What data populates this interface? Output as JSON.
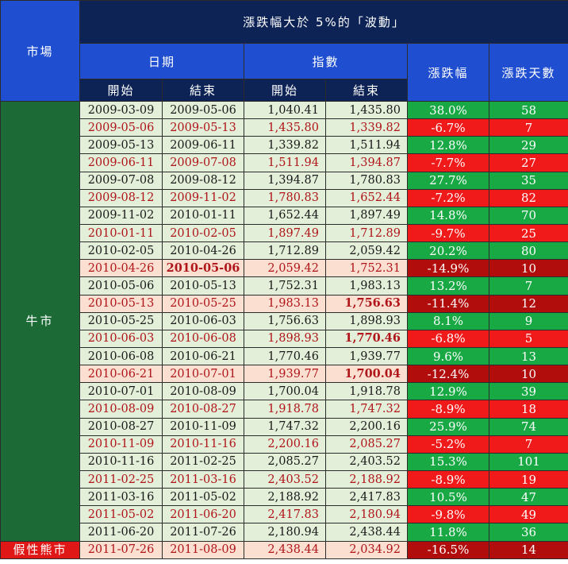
{
  "header": {
    "market": "市場",
    "title": "漲跌幅大於 5%的「波動」",
    "date_group": "日期",
    "index_group": "指數",
    "pct": "漲跌幅",
    "days": "漲跌天數",
    "start": "開始",
    "end": "結束"
  },
  "market_labels": {
    "bull": "牛市",
    "pseudo_bear": "假性熊市"
  },
  "colors": {
    "up": "#18a945",
    "down": "#f01a1a",
    "large_down": "#b20d0d",
    "highlight_row": "#fbe0d2",
    "row_bg": "#e3efd9"
  },
  "rows": [
    {
      "start_date": "2009-03-09",
      "end_date": "2009-05-06",
      "start_idx": "1,040.41",
      "end_idx": "1,435.80",
      "pct": "38.0%",
      "days": "58",
      "kind": "up"
    },
    {
      "start_date": "2009-05-06",
      "end_date": "2009-05-13",
      "start_idx": "1,435.80",
      "end_idx": "1,339.82",
      "pct": "-6.7%",
      "days": "7",
      "kind": "down"
    },
    {
      "start_date": "2009-05-13",
      "end_date": "2009-06-11",
      "start_idx": "1,339.82",
      "end_idx": "1,511.94",
      "pct": "12.8%",
      "days": "29",
      "kind": "up"
    },
    {
      "start_date": "2009-06-11",
      "end_date": "2009-07-08",
      "start_idx": "1,511.94",
      "end_idx": "1,394.87",
      "pct": "-7.7%",
      "days": "27",
      "kind": "down"
    },
    {
      "start_date": "2009-07-08",
      "end_date": "2009-08-12",
      "start_idx": "1,394.87",
      "end_idx": "1,780.83",
      "pct": "27.7%",
      "days": "35",
      "kind": "up"
    },
    {
      "start_date": "2009-08-12",
      "end_date": "2009-11-02",
      "start_idx": "1,780.83",
      "end_idx": "1,652.44",
      "pct": "-7.2%",
      "days": "82",
      "kind": "down"
    },
    {
      "start_date": "2009-11-02",
      "end_date": "2010-01-11",
      "start_idx": "1,652.44",
      "end_idx": "1,897.49",
      "pct": "14.8%",
      "days": "70",
      "kind": "up"
    },
    {
      "start_date": "2010-01-11",
      "end_date": "2010-02-05",
      "start_idx": "1,897.49",
      "end_idx": "1,712.89",
      "pct": "-9.7%",
      "days": "25",
      "kind": "down"
    },
    {
      "start_date": "2010-02-05",
      "end_date": "2010-04-26",
      "start_idx": "1,712.89",
      "end_idx": "2,059.42",
      "pct": "20.2%",
      "days": "80",
      "kind": "up"
    },
    {
      "start_date": "2010-04-26",
      "end_date": "2010-05-06",
      "start_idx": "2,059.42",
      "end_idx": "1,752.31",
      "pct": "-14.9%",
      "days": "10",
      "kind": "hl",
      "bold": "end_date"
    },
    {
      "start_date": "2010-05-06",
      "end_date": "2010-05-13",
      "start_idx": "1,752.31",
      "end_idx": "1,983.13",
      "pct": "13.2%",
      "days": "7",
      "kind": "up"
    },
    {
      "start_date": "2010-05-13",
      "end_date": "2010-05-25",
      "start_idx": "1,983.13",
      "end_idx": "1,756.63",
      "pct": "-11.4%",
      "days": "12",
      "kind": "hl",
      "bold": "end_idx"
    },
    {
      "start_date": "2010-05-25",
      "end_date": "2010-06-03",
      "start_idx": "1,756.63",
      "end_idx": "1,898.93",
      "pct": "8.1%",
      "days": "9",
      "kind": "up"
    },
    {
      "start_date": "2010-06-03",
      "end_date": "2010-06-08",
      "start_idx": "1,898.93",
      "end_idx": "1,770.46",
      "pct": "-6.8%",
      "days": "5",
      "kind": "down",
      "bold": "end_idx"
    },
    {
      "start_date": "2010-06-08",
      "end_date": "2010-06-21",
      "start_idx": "1,770.46",
      "end_idx": "1,939.77",
      "pct": "9.6%",
      "days": "13",
      "kind": "up"
    },
    {
      "start_date": "2010-06-21",
      "end_date": "2010-07-01",
      "start_idx": "1,939.77",
      "end_idx": "1,700.04",
      "pct": "-12.4%",
      "days": "10",
      "kind": "hl",
      "bold": "end_idx"
    },
    {
      "start_date": "2010-07-01",
      "end_date": "2010-08-09",
      "start_idx": "1,700.04",
      "end_idx": "1,918.78",
      "pct": "12.9%",
      "days": "39",
      "kind": "up"
    },
    {
      "start_date": "2010-08-09",
      "end_date": "2010-08-27",
      "start_idx": "1,918.78",
      "end_idx": "1,747.32",
      "pct": "-8.9%",
      "days": "18",
      "kind": "down"
    },
    {
      "start_date": "2010-08-27",
      "end_date": "2010-11-09",
      "start_idx": "1,747.32",
      "end_idx": "2,200.16",
      "pct": "25.9%",
      "days": "74",
      "kind": "up"
    },
    {
      "start_date": "2010-11-09",
      "end_date": "2010-11-16",
      "start_idx": "2,200.16",
      "end_idx": "2,085.27",
      "pct": "-5.2%",
      "days": "7",
      "kind": "down"
    },
    {
      "start_date": "2010-11-16",
      "end_date": "2011-02-25",
      "start_idx": "2,085.27",
      "end_idx": "2,403.52",
      "pct": "15.3%",
      "days": "101",
      "kind": "up"
    },
    {
      "start_date": "2011-02-25",
      "end_date": "2011-03-16",
      "start_idx": "2,403.52",
      "end_idx": "2,188.92",
      "pct": "-8.9%",
      "days": "19",
      "kind": "down"
    },
    {
      "start_date": "2011-03-16",
      "end_date": "2011-05-02",
      "start_idx": "2,188.92",
      "end_idx": "2,417.83",
      "pct": "10.5%",
      "days": "47",
      "kind": "up"
    },
    {
      "start_date": "2011-05-02",
      "end_date": "2011-06-20",
      "start_idx": "2,417.83",
      "end_idx": "2,180.94",
      "pct": "-9.8%",
      "days": "49",
      "kind": "down"
    },
    {
      "start_date": "2011-06-20",
      "end_date": "2011-07-26",
      "start_idx": "2,180.94",
      "end_idx": "2,438.44",
      "pct": "11.8%",
      "days": "36",
      "kind": "up"
    },
    {
      "start_date": "2011-07-26",
      "end_date": "2011-08-09",
      "start_idx": "2,438.44",
      "end_idx": "2,034.92",
      "pct": "-16.5%",
      "days": "14",
      "kind": "hl"
    }
  ]
}
